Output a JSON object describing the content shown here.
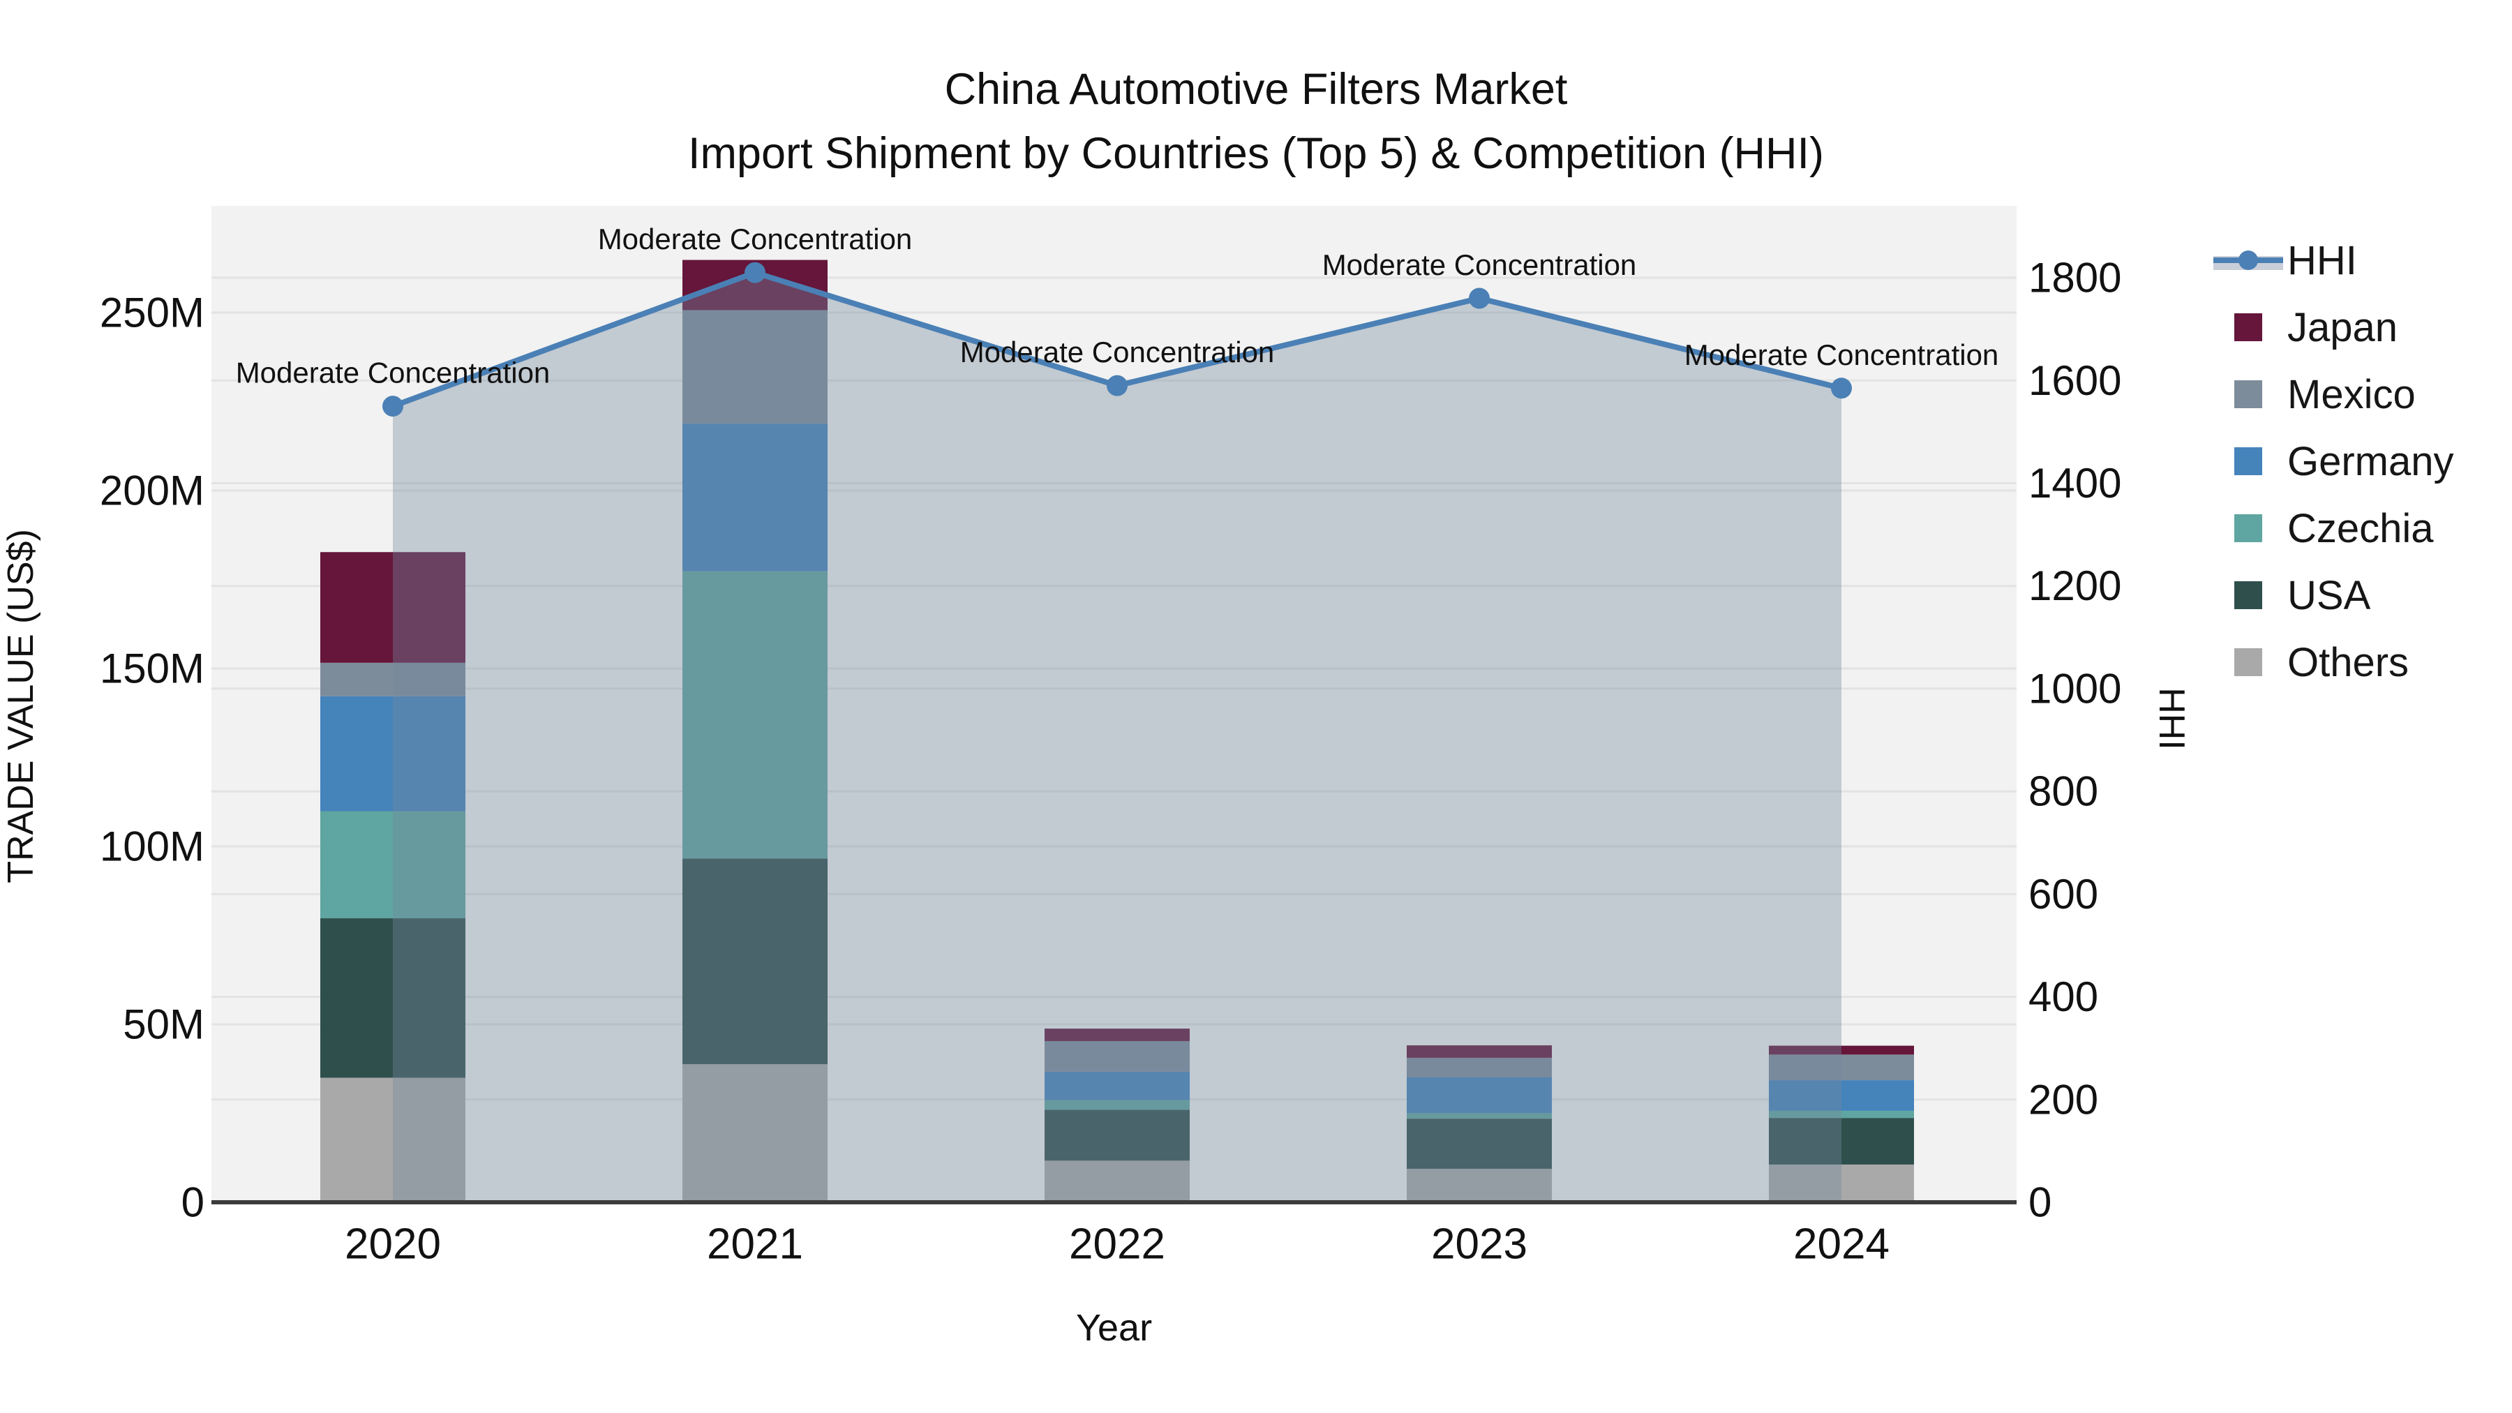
{
  "title": {
    "line1": "China Automotive Filters Market",
    "line2": "Import Shipment by Countries (Top 5) & Competition (HHI)"
  },
  "axes": {
    "x_title": "Year",
    "y_left_title": "TRADE VALUE (US$)",
    "y_right_title": "HHI",
    "y_left_ticks": [
      "0",
      "50M",
      "100M",
      "150M",
      "200M",
      "250M"
    ],
    "y_left_tick_values": [
      0,
      50,
      100,
      150,
      200,
      250
    ],
    "y_left_max": 280,
    "y_right_ticks": [
      "0",
      "200",
      "400",
      "600",
      "800",
      "1000",
      "1200",
      "1400",
      "1600",
      "1800"
    ],
    "y_right_tick_values": [
      0,
      200,
      400,
      600,
      800,
      1000,
      1200,
      1400,
      1600,
      1800
    ],
    "y_right_max": 1940
  },
  "chart_data": {
    "type": "bar+line",
    "title": "China Automotive Filters Market — Import Shipment by Countries (Top 5) & Competition (HHI)",
    "categories": [
      "2020",
      "2021",
      "2022",
      "2023",
      "2024"
    ],
    "value_unit": "million US$",
    "series": [
      {
        "name": "Japan",
        "color": "#65163A",
        "values": [
          31.1,
          14.1,
          3.5,
          3.5,
          2.5
        ]
      },
      {
        "name": "Mexico",
        "color": "#7D8C9B",
        "values": [
          9.4,
          31.9,
          8.6,
          5.5,
          7.2
        ]
      },
      {
        "name": "Germany",
        "color": "#4583BB",
        "values": [
          32.3,
          41.5,
          8.0,
          10.0,
          8.6
        ]
      },
      {
        "name": "Czechia",
        "color": "#5FA5A1",
        "values": [
          30.1,
          80.7,
          2.7,
          1.6,
          2.0
        ]
      },
      {
        "name": "USA",
        "color": "#2F4F4C",
        "values": [
          44.8,
          57.8,
          14.3,
          14.1,
          13.1
        ]
      },
      {
        "name": "Others",
        "color": "#A9A9A9",
        "values": [
          35.0,
          38.8,
          11.7,
          9.4,
          10.6
        ]
      }
    ],
    "stack_totals": [
      182.7,
      264.8,
      48.8,
      44.1,
      44.0
    ],
    "hhi": {
      "name": "HHI",
      "color": "#4A80B5",
      "area_color": "rgba(116,136,158,0.38)",
      "values": [
        1550,
        1810,
        1590,
        1760,
        1585
      ]
    },
    "annotations": [
      "Moderate Concentration",
      "Moderate Concentration",
      "Moderate Concentration",
      "Moderate Concentration",
      "Moderate Concentration"
    ],
    "grid": true,
    "legend_position": "right"
  },
  "legend": {
    "items": [
      {
        "label": "HHI",
        "type": "line",
        "color": "#4A80B5"
      },
      {
        "label": "Japan",
        "type": "swatch",
        "color": "#65163A"
      },
      {
        "label": "Mexico",
        "type": "swatch",
        "color": "#7D8C9B"
      },
      {
        "label": "Germany",
        "type": "swatch",
        "color": "#4583BB"
      },
      {
        "label": "Czechia",
        "type": "swatch",
        "color": "#5FA5A1"
      },
      {
        "label": "USA",
        "type": "swatch",
        "color": "#2F4F4C"
      },
      {
        "label": "Others",
        "type": "swatch",
        "color": "#A9A9A9"
      }
    ]
  },
  "colors": {
    "plot_background": "#F2F2F2",
    "gridline": "#E3E3E3",
    "axis_line": "#3C3C3C",
    "text": "#111111"
  }
}
